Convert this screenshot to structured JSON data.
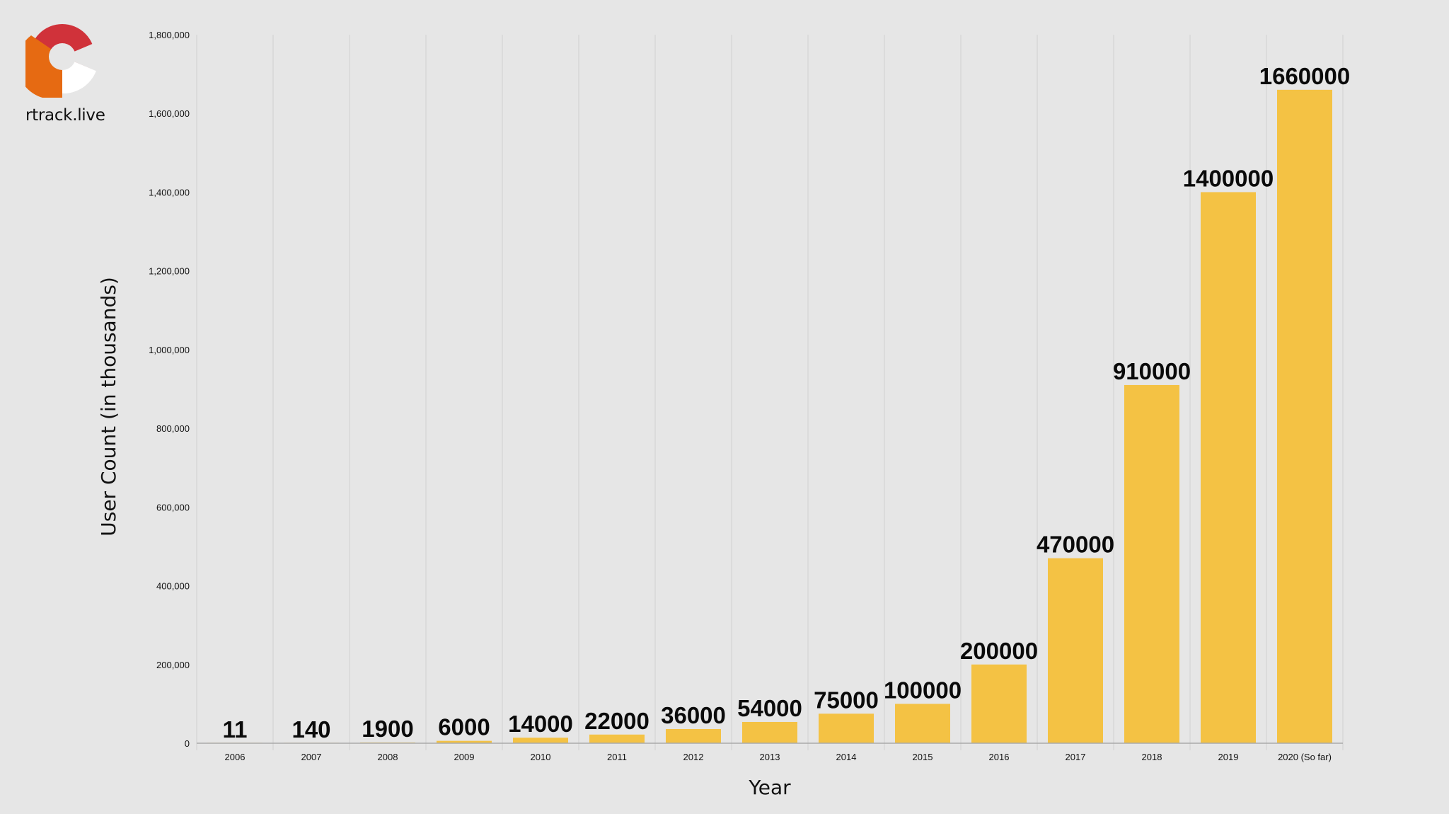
{
  "brand": {
    "site_name": "rtrack.live",
    "logo_colors": {
      "red": "#d0323a",
      "orange": "#e66a12",
      "white": "#ffffff"
    }
  },
  "colors": {
    "background": "#e6e6e6",
    "bar": "#f4c244",
    "gridline": "#d0d0d0",
    "axis": "#aaaaaa"
  },
  "chart_data": {
    "type": "bar",
    "title": "",
    "xlabel": "Year",
    "ylabel": "User Count (in thousands)",
    "categories": [
      "2006",
      "2007",
      "2008",
      "2009",
      "2010",
      "2011",
      "2012",
      "2013",
      "2014",
      "2015",
      "2016",
      "2017",
      "2018",
      "2019",
      "2020 (So far)"
    ],
    "values": [
      11,
      140,
      1900,
      6000,
      14000,
      22000,
      36000,
      54000,
      75000,
      100000,
      200000,
      470000,
      910000,
      1400000,
      1660000
    ],
    "data_labels": [
      "11",
      "140",
      "1900",
      "6000",
      "14000",
      "22000",
      "36000",
      "54000",
      "75000",
      "100000",
      "200000",
      "470000",
      "910000",
      "1400000",
      "1660000"
    ],
    "ylim": [
      0,
      1800000
    ],
    "y_ticks": [
      0,
      200000,
      400000,
      600000,
      800000,
      1000000,
      1200000,
      1400000,
      1600000,
      1800000
    ],
    "y_tick_labels": [
      "0",
      "200,000",
      "400,000",
      "600,000",
      "800,000",
      "1,000,000",
      "1,200,000",
      "1,400,000",
      "1,600,000",
      "1,800,000"
    ],
    "grid": "vertical",
    "legend": "none"
  }
}
